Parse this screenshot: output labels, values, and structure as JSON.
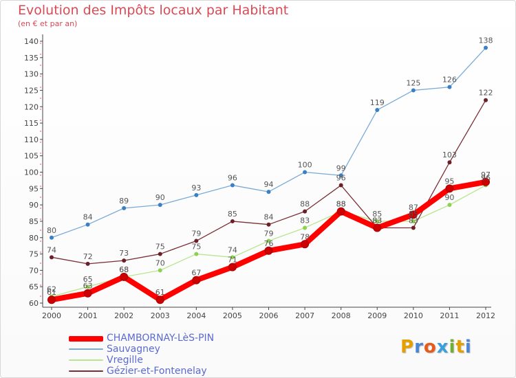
{
  "header": {
    "title": "Evolution des Impôts locaux par Habitant",
    "subtitle": "(en € et par an)"
  },
  "logo": {
    "text": "Proxiti",
    "letters": [
      {
        "ch": "P",
        "color": "#e5a000"
      },
      {
        "ch": "r",
        "color": "#4a86d8"
      },
      {
        "ch": "o",
        "color": "#e85a1a"
      },
      {
        "ch": "x",
        "color": "#3aa0dc"
      },
      {
        "ch": "i",
        "color": "#70b030"
      },
      {
        "ch": "t",
        "color": "#e5a000"
      },
      {
        "ch": "i",
        "color": "#4a86d8"
      }
    ]
  },
  "chart_data": {
    "type": "line",
    "title": "Evolution des Impôts locaux par Habitant",
    "subtitle": "(en € et par an)",
    "xlabel": "",
    "ylabel": "",
    "x": [
      "2000",
      "2001",
      "2002",
      "2003",
      "2004",
      "2005",
      "2006",
      "2007",
      "2008",
      "2009",
      "2010",
      "2011",
      "2012"
    ],
    "ylim": [
      60,
      140
    ],
    "yticks": [
      60,
      65,
      70,
      75,
      80,
      85,
      90,
      95,
      100,
      105,
      110,
      115,
      120,
      125,
      130,
      135,
      140
    ],
    "grid": false,
    "legend_position": "bottom-left",
    "series": [
      {
        "name": "CHAMBORNAY-LèS-PIN",
        "color": "#ff0000",
        "marker": "#cc0000",
        "width": 8,
        "values": [
          61,
          63,
          68,
          61,
          67,
          71,
          76,
          78,
          88,
          83,
          87,
          95,
          97
        ]
      },
      {
        "name": "Sauvagney",
        "color": "#7aaad6",
        "marker": "#3d7fc4",
        "width": 1.3,
        "values": [
          80,
          84,
          89,
          90,
          93,
          96,
          94,
          100,
          99,
          119,
          125,
          126,
          138
        ]
      },
      {
        "name": "Vregille",
        "color": "#b8e68f",
        "marker": "#8dd14f",
        "width": 1.3,
        "values": [
          62,
          65,
          68,
          70,
          75,
          74,
          79,
          83,
          88,
          85,
          85,
          90,
          96
        ]
      },
      {
        "name": "Gézier-et-Fontenelay",
        "color": "#7a2e36",
        "marker": "#6b1f26",
        "width": 1.3,
        "values": [
          74,
          72,
          73,
          75,
          79,
          85,
          84,
          88,
          96,
          83,
          83,
          103,
          122
        ]
      }
    ]
  }
}
